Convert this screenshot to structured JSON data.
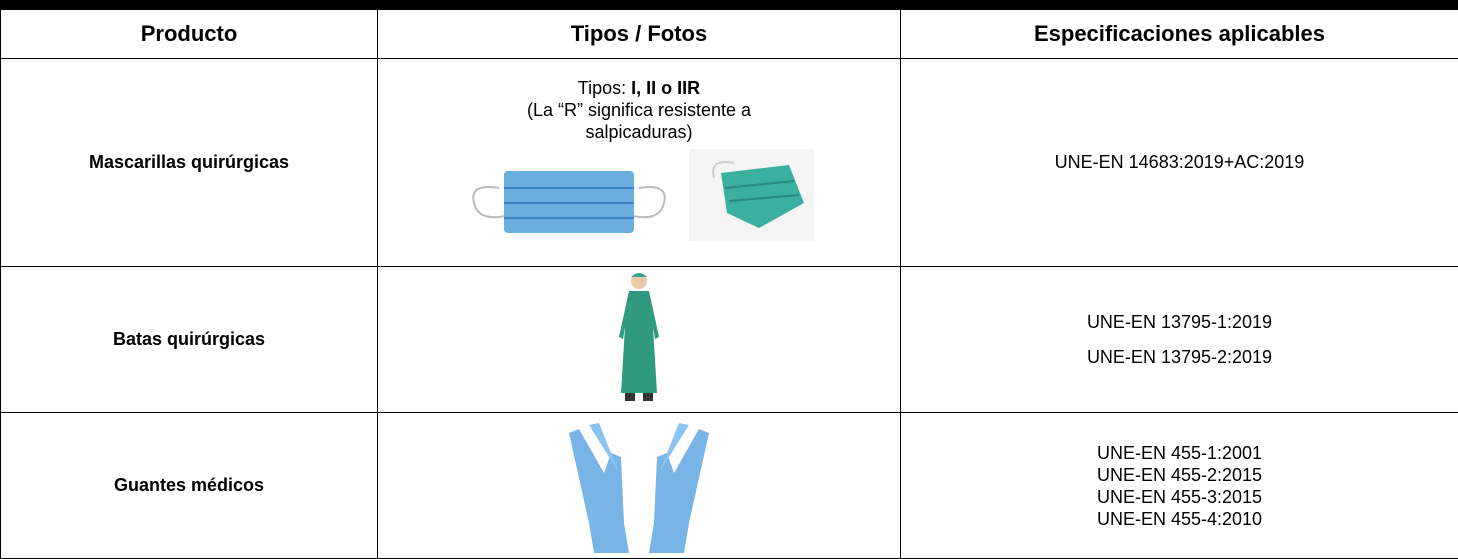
{
  "table": {
    "header": [
      "Producto",
      "Tipos / Fotos",
      "Especificaciones aplicables"
    ],
    "rows": [
      {
        "product": "Mascarillas quirúrgicas",
        "types": {
          "label": "Tipos:",
          "value": "I, II o IIR",
          "note": "(La “R” significa resistente a salpicaduras)"
        },
        "specs": [
          "UNE-EN 14683:2019+AC:2019"
        ]
      },
      {
        "product": "Batas quirúrgicas",
        "specs": [
          "UNE-EN 13795-1:2019",
          "UNE-EN 13795-2:2019"
        ]
      },
      {
        "product": "Guantes médicos",
        "specs": [
          "UNE-EN 455-1:2001",
          "UNE-EN 455-2:2015",
          "UNE-EN 455-3:2015",
          "UNE-EN 455-4:2010"
        ]
      }
    ]
  }
}
